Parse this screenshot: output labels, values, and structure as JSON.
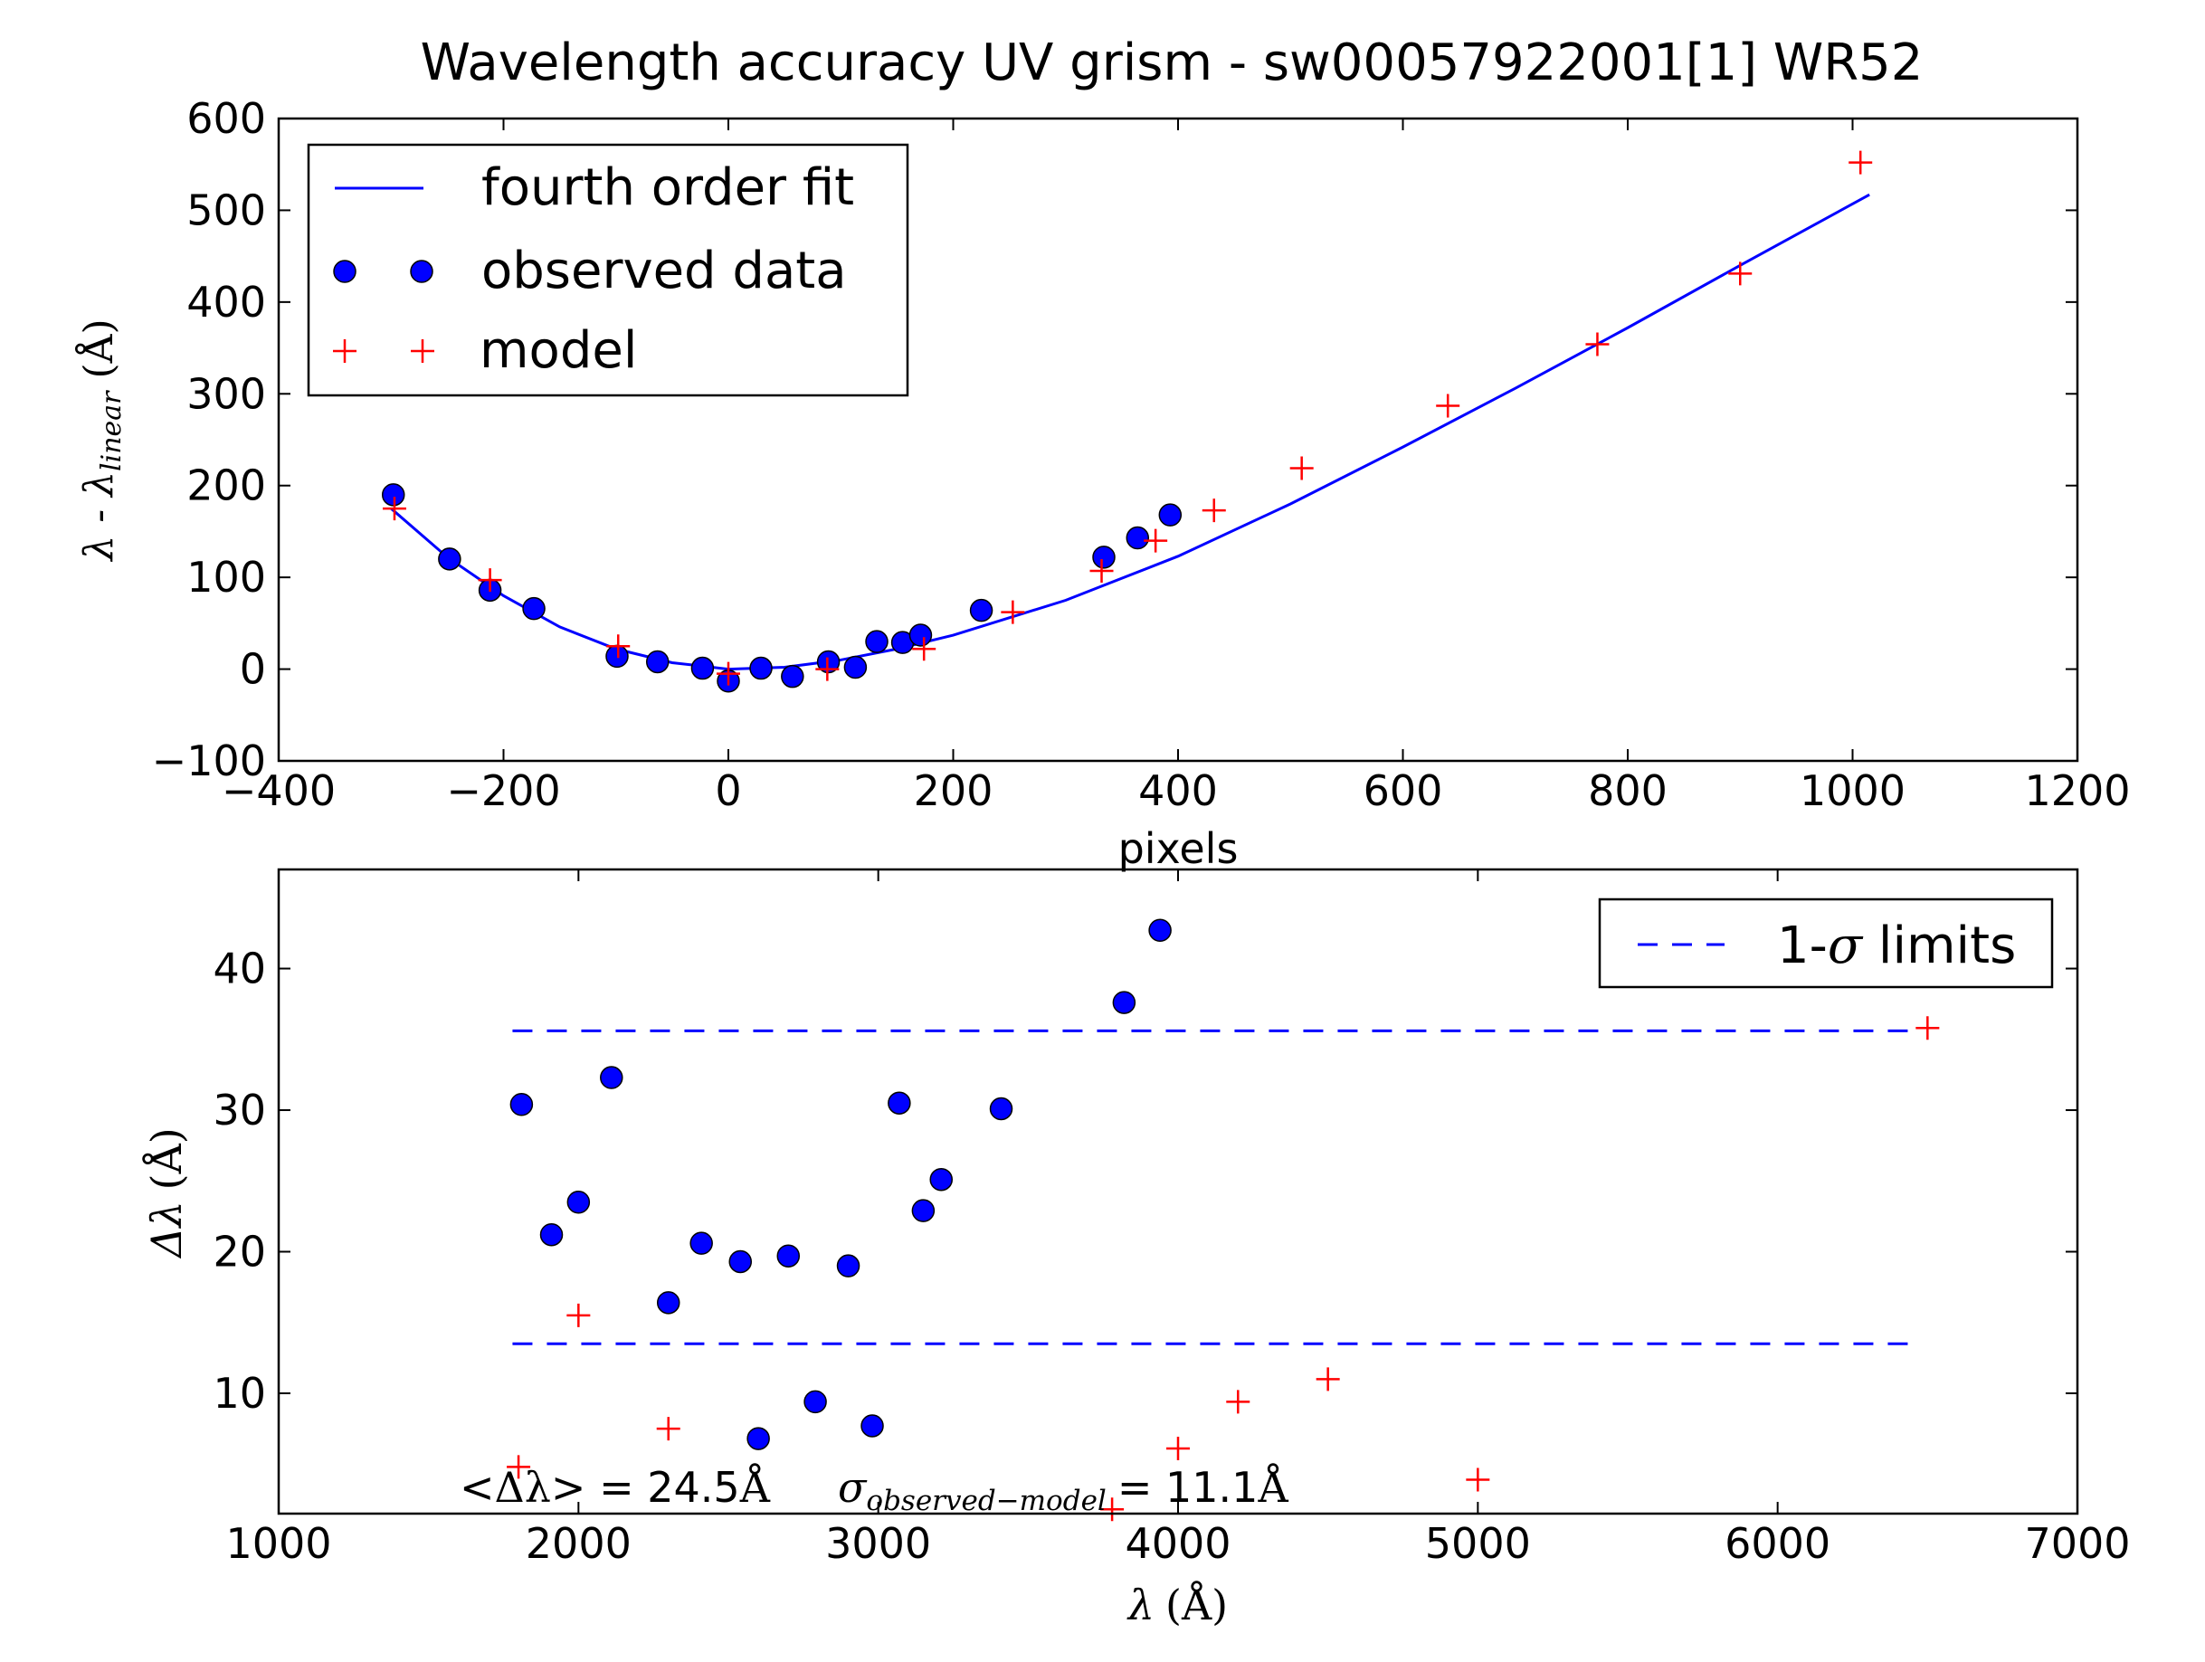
{
  "figure_title": "Wavelength accuracy UV grism - sw00057922001[1] WR52",
  "colors": {
    "fit_line": "#0000ff",
    "observed_marker": "#0000ff",
    "model_marker": "#ff0000",
    "sigma_line": "#0000ff",
    "axes": "#000000"
  },
  "chart_data": [
    {
      "type": "scatter",
      "title": "Wavelength accuracy UV grism - sw00057922001[1] WR52",
      "xlabel": "pixels",
      "ylabel_parts": [
        "λ - λ",
        "linear",
        "(Å)"
      ],
      "xlim": [
        -400,
        1200
      ],
      "ylim": [
        -100,
        600
      ],
      "xticks": [
        -400,
        -200,
        0,
        200,
        400,
        600,
        800,
        1000,
        1200
      ],
      "yticks": [
        -100,
        0,
        100,
        200,
        300,
        400,
        500,
        600
      ],
      "xtick_labels": [
        "−400",
        "−200",
        "0",
        "200",
        "400",
        "600",
        "800",
        "1000",
        "1200"
      ],
      "ytick_labels": [
        "−100",
        "0",
        "100",
        "200",
        "300",
        "400",
        "500",
        "600"
      ],
      "grid": false,
      "legend": {
        "placement": "upper-left",
        "entries": [
          "fourth order fit",
          "observed data",
          "model"
        ]
      },
      "series": [
        {
          "name": "fourth order fit",
          "kind": "line",
          "x": [
            -300,
            -250,
            -200,
            -150,
            -100,
            -50,
            0,
            50,
            100,
            150,
            200,
            300,
            400,
            500,
            600,
            700,
            800,
            900,
            1015
          ],
          "y": [
            175,
            122,
            80,
            46,
            22,
            7,
            0,
            2,
            10,
            22,
            37,
            75,
            123,
            180,
            242,
            306,
            372,
            440,
            517
          ]
        },
        {
          "name": "observed data",
          "kind": "points",
          "x": [
            -298,
            -248,
            -212,
            -173,
            -99,
            -63,
            -23,
            0,
            29,
            57,
            89,
            113,
            132,
            155,
            171,
            225,
            334,
            364,
            393
          ],
          "y": [
            190,
            120,
            86,
            66,
            14,
            8,
            1,
            -13,
            1,
            -8,
            8,
            2,
            30,
            29,
            37,
            64,
            122,
            143,
            168
          ]
        },
        {
          "name": "model",
          "kind": "plus",
          "x": [
            -297,
            -212,
            -98,
            0,
            88,
            174,
            253,
            332,
            380,
            432,
            510,
            640,
            773,
            900,
            1007
          ],
          "y": [
            175,
            97,
            25,
            -5,
            0,
            22,
            62,
            107,
            140,
            173,
            219,
            287,
            354,
            431,
            552
          ]
        }
      ]
    },
    {
      "type": "scatter",
      "xlabel_parts": [
        "λ",
        "(Å)"
      ],
      "ylabel_parts": [
        "Δλ",
        "(Å)"
      ],
      "xlim": [
        1000,
        7000
      ],
      "ylim": [
        1.5,
        47
      ],
      "xticks": [
        1000,
        2000,
        3000,
        4000,
        5000,
        6000,
        7000
      ],
      "yticks": [
        10,
        20,
        30,
        40
      ],
      "xtick_labels": [
        "1000",
        "2000",
        "3000",
        "4000",
        "5000",
        "6000",
        "7000"
      ],
      "ytick_labels": [
        "10",
        "20",
        "30",
        "40"
      ],
      "grid": false,
      "legend": {
        "placement": "upper-right",
        "entry_parts": [
          "1-",
          "σ",
          " limits"
        ]
      },
      "annotation": {
        "mean_parts": [
          "<",
          "Δλ",
          "> = 24.5",
          "Å"
        ],
        "sigma_symbol": "σ",
        "sigma_subscript": "observed−model",
        "sigma_value_parts": [
          "= 11.1",
          "Å"
        ]
      },
      "sigma_limits": {
        "x_range": [
          1780,
          6470
        ],
        "upper": 35.6,
        "lower": 13.5
      },
      "series": [
        {
          "name": "observed data",
          "kind": "points",
          "x": [
            1810,
            1910,
            2000,
            2110,
            2300,
            2410,
            2540,
            2600,
            2700,
            2790,
            2900,
            2980,
            3070,
            3150,
            3210,
            3410,
            3820,
            3940
          ],
          "y": [
            30.4,
            21.2,
            23.5,
            32.3,
            16.4,
            20.6,
            19.3,
            6.8,
            19.7,
            9.4,
            19.0,
            7.7,
            30.5,
            22.9,
            25.1,
            30.1,
            37.6,
            42.7
          ]
        },
        {
          "name": "model",
          "kind": "plus",
          "x": [
            1800,
            2000,
            2300,
            3780,
            4000,
            4200,
            4500,
            5000,
            6500
          ],
          "y": [
            4.8,
            15.5,
            7.5,
            1.8,
            6.1,
            9.4,
            11.0,
            3.9,
            35.8
          ]
        }
      ]
    }
  ]
}
